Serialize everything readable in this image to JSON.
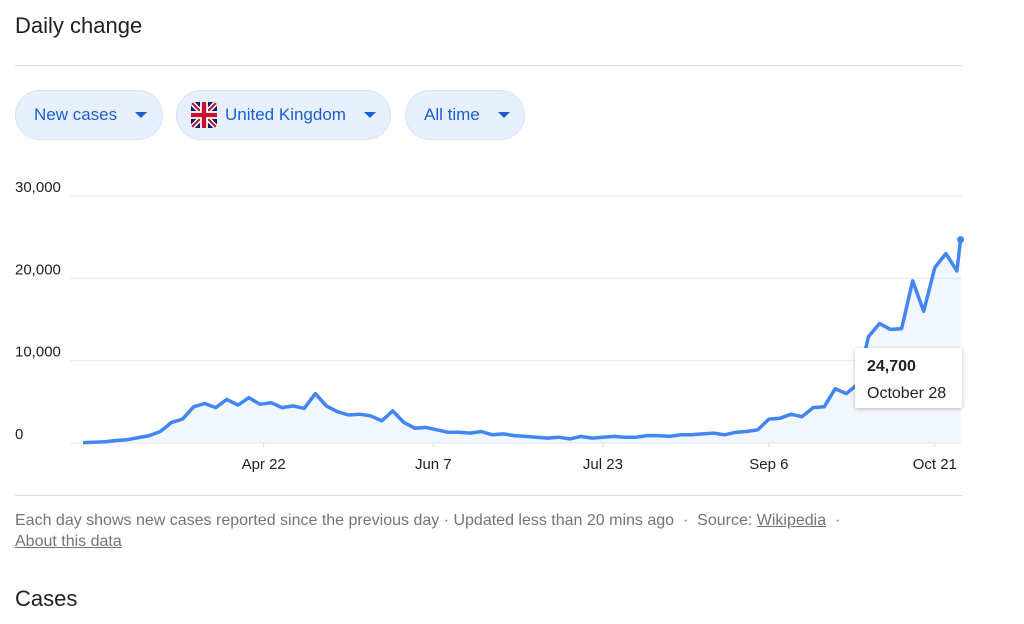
{
  "header": {
    "title": "Daily change"
  },
  "filters": [
    "New cases",
    "United Kingdom",
    "All time"
  ],
  "chart_data": {
    "type": "line",
    "x": [
      "Mar 4",
      "Mar 7",
      "Mar 10",
      "Mar 13",
      "Mar 16",
      "Mar 19",
      "Mar 22",
      "Mar 25",
      "Mar 28",
      "Mar 31",
      "Apr 3",
      "Apr 6",
      "Apr 9",
      "Apr 12",
      "Apr 15",
      "Apr 18",
      "Apr 21",
      "Apr 24",
      "Apr 27",
      "Apr 30",
      "May 3",
      "May 6",
      "May 9",
      "May 12",
      "May 15",
      "May 18",
      "May 21",
      "May 24",
      "May 27",
      "May 30",
      "Jun 2",
      "Jun 5",
      "Jun 8",
      "Jun 11",
      "Jun 14",
      "Jun 17",
      "Jun 20",
      "Jun 23",
      "Jun 26",
      "Jun 29",
      "Jul 2",
      "Jul 5",
      "Jul 8",
      "Jul 11",
      "Jul 14",
      "Jul 17",
      "Jul 20",
      "Jul 23",
      "Jul 26",
      "Jul 29",
      "Aug 1",
      "Aug 4",
      "Aug 7",
      "Aug 10",
      "Aug 13",
      "Aug 16",
      "Aug 19",
      "Aug 22",
      "Aug 25",
      "Aug 28",
      "Aug 31",
      "Sep 3",
      "Sep 6",
      "Sep 9",
      "Sep 12",
      "Sep 15",
      "Sep 18",
      "Sep 21",
      "Sep 24",
      "Sep 27",
      "Sep 30",
      "Oct 3",
      "Oct 6",
      "Oct 9",
      "Oct 12",
      "Oct 15",
      "Oct 18",
      "Oct 21",
      "Oct 24",
      "Oct 27",
      "Oct 28"
    ],
    "series": [
      {
        "name": "New cases",
        "color": "#4285f4",
        "values": [
          50,
          100,
          150,
          300,
          400,
          650,
          900,
          1400,
          2500,
          2900,
          4400,
          4800,
          4300,
          5300,
          4600,
          5500,
          4700,
          4900,
          4300,
          4500,
          4200,
          6000,
          4500,
          3800,
          3400,
          3500,
          3300,
          2700,
          3900,
          2500,
          1800,
          1900,
          1600,
          1300,
          1300,
          1200,
          1400,
          1000,
          1100,
          900,
          800,
          700,
          600,
          700,
          500,
          800,
          600,
          700,
          800,
          700,
          700,
          900,
          900,
          800,
          1000,
          1000,
          1100,
          1200,
          1000,
          1300,
          1400,
          1600,
          2900,
          3000,
          3500,
          3200,
          4300,
          4400,
          6600,
          6000,
          7100,
          12900,
          14500,
          13800,
          13900,
          19700,
          16000,
          21300,
          23000,
          20900,
          24700
        ]
      }
    ],
    "xlim": [
      "Mar 4",
      "Oct 28"
    ],
    "xticks": [
      "Apr 22",
      "Jun 7",
      "Jul 23",
      "Sep 6",
      "Oct 21"
    ],
    "ylim": [
      0,
      30000
    ],
    "yticks": [
      0,
      {
        "value": 10000,
        "label": "10,000"
      },
      {
        "value": 20000,
        "label": "20,000"
      },
      {
        "value": 30000,
        "label": "30,000"
      }
    ],
    "grid": true,
    "annotation": {
      "value": 24700,
      "value_label": "24,700",
      "date": "October 28"
    }
  },
  "footer": {
    "note": "Each day shows new cases reported since the previous day",
    "separator": "·",
    "updated": "Updated less than 20 mins ago",
    "source_label": "Source:",
    "source_link": "Wikipedia",
    "about": "About this data"
  },
  "next_section": "Cases"
}
